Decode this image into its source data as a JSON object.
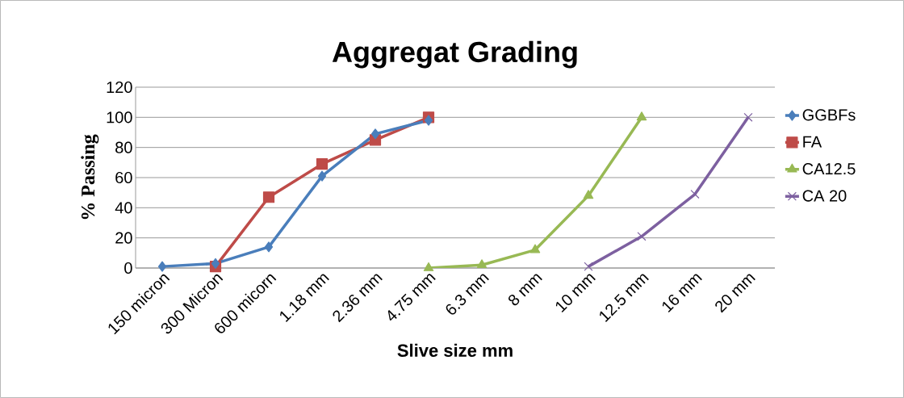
{
  "chart_data": {
    "type": "line",
    "title": "Aggregat Grading",
    "xlabel": "Slive size mm",
    "ylabel": "% Passing",
    "categories": [
      "150 micron",
      "300 Micron",
      "600 micorn",
      "1.18 mm",
      "2.36 mm",
      "4.75 mm",
      "6.3 mm",
      "8 mm",
      "10 mm",
      "12.5 mm",
      "16 mm",
      "20 mm"
    ],
    "series": [
      {
        "name": "GGBFs",
        "color": "#4a7ebb",
        "marker": "diamond",
        "values": [
          1,
          3,
          14,
          61,
          89,
          98,
          null,
          null,
          null,
          null,
          null,
          null
        ]
      },
      {
        "name": "FA",
        "color": "#be4b48",
        "marker": "square",
        "values": [
          null,
          1,
          47,
          69,
          85,
          100,
          null,
          null,
          null,
          null,
          null,
          null
        ]
      },
      {
        "name": "CA12.5",
        "color": "#98b954",
        "marker": "triangle",
        "values": [
          null,
          null,
          null,
          null,
          null,
          0,
          2,
          12,
          48,
          100,
          null,
          null
        ]
      },
      {
        "name": "CA 20",
        "color": "#7d60a0",
        "marker": "cross",
        "values": [
          null,
          null,
          null,
          null,
          null,
          null,
          null,
          null,
          1,
          21,
          49,
          100
        ]
      }
    ],
    "ylim": [
      0,
      120
    ],
    "yticks": [
      0,
      20,
      40,
      60,
      80,
      100,
      120
    ],
    "grid": "y",
    "legend": "right"
  }
}
